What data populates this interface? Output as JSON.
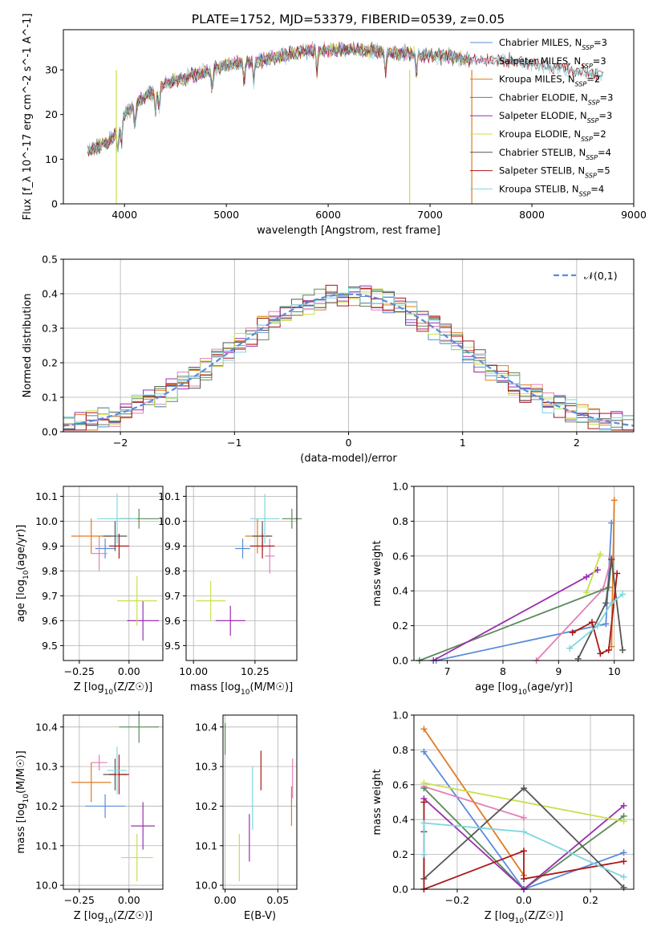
{
  "title": "PLATE=1752, MJD=53379, FIBERID=0539, z=0.05",
  "colors": {
    "Chabrier MILES": "#5b8bd9",
    "Salpeter MILES": "#e37fb8",
    "Kroupa MILES": "#e07b22",
    "Chabrier ELODIE": "#5a8a5a",
    "Salpeter ELODIE": "#9b2fb0",
    "Kroupa ELODIE": "#c8e04a",
    "Chabrier STELIB": "#555555",
    "Salpeter STELIB": "#a81818",
    "Kroupa STELIB": "#7fd6e0",
    "normal": "#5b8bd9",
    "grid": "#b0b0b0"
  },
  "chart_data": [
    {
      "type": "line",
      "xlabel": "wavelength [Angstrom, rest frame]",
      "ylabel": "Flux [f_λ 10^-17 erg cm^-2 s^-1 A^-1]",
      "xlim": [
        3400,
        9000
      ],
      "ylim": [
        0,
        39
      ],
      "xticks": [
        4000,
        5000,
        6000,
        7000,
        8000,
        9000
      ],
      "yticks": [
        0,
        10,
        20,
        30
      ],
      "legend_position": "top-right",
      "series": [
        {
          "name": "Chabrier MILES",
          "n_ssp": "3"
        },
        {
          "name": "Salpeter MILES",
          "n_ssp": "3"
        },
        {
          "name": "Kroupa MILES",
          "n_ssp": "2"
        },
        {
          "name": "Chabrier ELODIE",
          "n_ssp": "3"
        },
        {
          "name": "Salpeter ELODIE",
          "n_ssp": "3"
        },
        {
          "name": "Kroupa ELODIE",
          "n_ssp": "2"
        },
        {
          "name": "Chabrier STELIB",
          "n_ssp": "4"
        },
        {
          "name": "Salpeter STELIB",
          "n_ssp": "5"
        },
        {
          "name": "Kroupa STELIB",
          "n_ssp": "4"
        }
      ],
      "continuum": {
        "x": [
          3640,
          3750,
          3850,
          3950,
          4000,
          4100,
          4200,
          4300,
          4400,
          4500,
          4700,
          5000,
          5300,
          5500,
          5700,
          6000,
          6300,
          6600,
          6900,
          7200,
          7500,
          7800,
          8100,
          8400,
          8700
        ],
        "y": [
          12,
          13,
          14,
          17,
          20,
          22,
          24,
          25,
          27,
          27.5,
          29,
          31,
          32,
          33,
          34,
          34.5,
          34.5,
          34,
          33.5,
          33,
          32,
          32,
          31,
          30,
          29
        ]
      }
    },
    {
      "type": "bar",
      "xlabel": "(data-model)/error",
      "ylabel": "Normed distribution",
      "xlim": [
        -2.5,
        2.5
      ],
      "ylim": [
        0,
        0.5
      ],
      "xticks": [
        -2,
        -1,
        0,
        1,
        2
      ],
      "yticks": [
        0.0,
        0.1,
        0.2,
        0.3,
        0.4,
        0.5
      ],
      "grid": true,
      "legend": "𝒩(0,1)",
      "legend_position": "top-right"
    },
    {
      "type": "scatter",
      "xlabel": "Z [log10(Z/Z☉)]",
      "ylabel": "age  [log10(age/yr)]",
      "xlim": [
        -0.33,
        0.17
      ],
      "ylim": [
        9.44,
        10.14
      ],
      "xticks": [
        -0.25,
        0.0
      ],
      "yticks": [
        9.5,
        9.6,
        9.7,
        9.8,
        9.9,
        10.0,
        10.1
      ],
      "points": [
        {
          "series": "Chabrier MILES",
          "x": -0.12,
          "y": 9.89,
          "xerr": 0.05,
          "yerr": 0.04
        },
        {
          "series": "Salpeter MILES",
          "x": -0.15,
          "y": 9.87,
          "xerr": 0.04,
          "yerr": 0.07
        },
        {
          "series": "Kroupa MILES",
          "x": -0.19,
          "y": 9.94,
          "xerr": 0.1,
          "yerr": 0.07
        },
        {
          "series": "Chabrier ELODIE",
          "x": 0.05,
          "y": 10.01,
          "xerr": 0.1,
          "yerr": 0.04
        },
        {
          "series": "Salpeter ELODIE",
          "x": 0.07,
          "y": 9.6,
          "xerr": 0.08,
          "yerr": 0.08
        },
        {
          "series": "Kroupa ELODIE",
          "x": 0.04,
          "y": 9.68,
          "xerr": 0.1,
          "yerr": 0.1
        },
        {
          "series": "Chabrier STELIB",
          "x": -0.07,
          "y": 9.94,
          "xerr": 0.06,
          "yerr": 0.06
        },
        {
          "series": "Salpeter STELIB",
          "x": -0.05,
          "y": 9.9,
          "xerr": 0.05,
          "yerr": 0.05
        },
        {
          "series": "Kroupa STELIB",
          "x": -0.06,
          "y": 10.01,
          "xerr": 0.1,
          "yerr": 0.1
        }
      ]
    },
    {
      "type": "scatter",
      "xlabel": "mass [log10(M/M☉)]",
      "ylabel": "",
      "xlim": [
        9.97,
        10.42
      ],
      "ylim": [
        9.44,
        10.14
      ],
      "xticks": [
        10.0,
        10.25
      ],
      "yticks": [
        9.5,
        9.6,
        9.7,
        9.8,
        9.9,
        10.0,
        10.1
      ],
      "points": [
        {
          "series": "Chabrier MILES",
          "x": 10.2,
          "y": 9.89,
          "xerr": 0.03,
          "yerr": 0.04
        },
        {
          "series": "Salpeter MILES",
          "x": 10.31,
          "y": 9.86,
          "xerr": 0.02,
          "yerr": 0.07
        },
        {
          "series": "Kroupa MILES",
          "x": 10.26,
          "y": 9.94,
          "xerr": 0.05,
          "yerr": 0.07
        },
        {
          "series": "Chabrier ELODIE",
          "x": 10.4,
          "y": 10.01,
          "xerr": 0.04,
          "yerr": 0.04
        },
        {
          "series": "Salpeter ELODIE",
          "x": 10.15,
          "y": 9.6,
          "xerr": 0.06,
          "yerr": 0.06
        },
        {
          "series": "Kroupa ELODIE",
          "x": 10.07,
          "y": 9.68,
          "xerr": 0.06,
          "yerr": 0.08
        },
        {
          "series": "Chabrier STELIB",
          "x": 10.28,
          "y": 9.94,
          "xerr": 0.04,
          "yerr": 0.06
        },
        {
          "series": "Salpeter STELIB",
          "x": 10.28,
          "y": 9.9,
          "xerr": 0.05,
          "yerr": 0.05
        },
        {
          "series": "Kroupa STELIB",
          "x": 10.29,
          "y": 10.01,
          "xerr": 0.06,
          "yerr": 0.1
        }
      ]
    },
    {
      "type": "line",
      "xlabel": "age  [log10(age/yr)]",
      "ylabel": "mass weight",
      "xlim": [
        6.4,
        10.35
      ],
      "ylim": [
        0,
        1.0
      ],
      "xticks": [
        7,
        8,
        9,
        10
      ],
      "yticks": [
        0.0,
        0.2,
        0.4,
        0.6,
        0.8,
        1.0
      ],
      "grid": true,
      "series": [
        {
          "name": "Chabrier MILES",
          "x": [
            6.8,
            9.85,
            9.95
          ],
          "y": [
            0.0,
            0.21,
            0.79
          ]
        },
        {
          "name": "Salpeter MILES",
          "x": [
            8.6,
            9.8,
            9.95
          ],
          "y": [
            0.0,
            0.41,
            0.59
          ]
        },
        {
          "name": "Kroupa MILES",
          "x": [
            9.95,
            10.0
          ],
          "y": [
            0.08,
            0.92
          ]
        },
        {
          "name": "Chabrier ELODIE",
          "x": [
            6.5,
            9.9,
            9.95
          ],
          "y": [
            0.0,
            0.42,
            0.58
          ]
        },
        {
          "name": "Salpeter ELODIE",
          "x": [
            6.75,
            9.5,
            9.7
          ],
          "y": [
            0.0,
            0.48,
            0.52
          ]
        },
        {
          "name": "Kroupa ELODIE",
          "x": [
            9.5,
            9.75
          ],
          "y": [
            0.39,
            0.61
          ]
        },
        {
          "name": "Chabrier STELIB",
          "x": [
            9.35,
            9.85,
            9.95,
            10.15
          ],
          "y": [
            0.01,
            0.33,
            0.58,
            0.06
          ]
        },
        {
          "name": "Salpeter STELIB",
          "x": [
            9.25,
            9.6,
            9.75,
            9.9,
            10.05
          ],
          "y": [
            0.16,
            0.22,
            0.04,
            0.06,
            0.5
          ]
        },
        {
          "name": "Kroupa STELIB",
          "x": [
            9.2,
            9.7,
            9.95,
            10.15
          ],
          "y": [
            0.07,
            0.2,
            0.33,
            0.38
          ]
        }
      ]
    },
    {
      "type": "scatter",
      "xlabel": "Z [log10(Z/Z☉)]",
      "ylabel": "mass [log10(M/M☉)]",
      "xlim": [
        -0.33,
        0.17
      ],
      "ylim": [
        9.99,
        10.43
      ],
      "xticks": [
        -0.25,
        0.0
      ],
      "yticks": [
        10.0,
        10.1,
        10.2,
        10.3,
        10.4
      ],
      "points": [
        {
          "series": "Chabrier MILES",
          "x": -0.12,
          "y": 10.2,
          "xerr": 0.1,
          "yerr": 0.03
        },
        {
          "series": "Salpeter MILES",
          "x": -0.15,
          "y": 10.31,
          "xerr": 0.04,
          "yerr": 0.02
        },
        {
          "series": "Kroupa MILES",
          "x": -0.19,
          "y": 10.26,
          "xerr": 0.1,
          "yerr": 0.05
        },
        {
          "series": "Chabrier ELODIE",
          "x": 0.05,
          "y": 10.4,
          "xerr": 0.1,
          "yerr": 0.04
        },
        {
          "series": "Salpeter ELODIE",
          "x": 0.07,
          "y": 10.15,
          "xerr": 0.06,
          "yerr": 0.06
        },
        {
          "series": "Kroupa ELODIE",
          "x": 0.04,
          "y": 10.07,
          "xerr": 0.08,
          "yerr": 0.06
        },
        {
          "series": "Chabrier STELIB",
          "x": -0.07,
          "y": 10.28,
          "xerr": 0.06,
          "yerr": 0.04
        },
        {
          "series": "Salpeter STELIB",
          "x": -0.05,
          "y": 10.28,
          "xerr": 0.05,
          "yerr": 0.05
        },
        {
          "series": "Kroupa STELIB",
          "x": -0.06,
          "y": 10.29,
          "xerr": 0.05,
          "yerr": 0.06
        }
      ]
    },
    {
      "type": "scatter",
      "xlabel": "E(B-V)",
      "ylabel": "",
      "xlim": [
        -0.002,
        0.068
      ],
      "ylim": [
        9.99,
        10.43
      ],
      "xticks": [
        0.0,
        0.05
      ],
      "yticks": [
        10.0,
        10.1,
        10.2,
        10.3,
        10.4
      ],
      "points": [
        {
          "series": "Chabrier ELODIE",
          "x": 0.0,
          "y": 10.37,
          "yerr": 0.04
        },
        {
          "series": "Kroupa ELODIE",
          "x": 0.0135,
          "y": 10.07,
          "yerr": 0.06
        },
        {
          "series": "Salpeter ELODIE",
          "x": 0.023,
          "y": 10.12,
          "yerr": 0.06
        },
        {
          "series": "Kroupa STELIB",
          "x": 0.026,
          "y": 10.22,
          "yerr": 0.08
        },
        {
          "series": "Salpeter STELIB",
          "x": 0.034,
          "y": 10.29,
          "yerr": 0.05
        },
        {
          "series": "Kroupa MILES",
          "x": 0.063,
          "y": 10.2,
          "yerr": 0.05
        },
        {
          "series": "Salpeter MILES",
          "x": 0.064,
          "y": 10.27,
          "yerr": 0.05
        }
      ]
    },
    {
      "type": "line",
      "xlabel": "Z [log10(Z/Z☉)]",
      "ylabel": "mass weight",
      "xlim": [
        -0.33,
        0.33
      ],
      "ylim": [
        0,
        1.0
      ],
      "xticks": [
        -0.2,
        0.0,
        0.2
      ],
      "yticks": [
        0.0,
        0.2,
        0.4,
        0.6,
        0.8,
        1.0
      ],
      "grid": true,
      "series": [
        {
          "name": "Chabrier MILES",
          "x": [
            -0.3,
            0.0,
            0.3
          ],
          "y": [
            0.79,
            0.0,
            0.21
          ]
        },
        {
          "name": "Salpeter MILES",
          "x": [
            -0.3,
            0.0
          ],
          "y": [
            0.59,
            0.41
          ]
        },
        {
          "name": "Kroupa MILES",
          "x": [
            -0.3,
            0.0
          ],
          "y": [
            0.92,
            0.08
          ]
        },
        {
          "name": "Chabrier ELODIE",
          "x": [
            -0.3,
            0.0,
            0.3
          ],
          "y": [
            0.58,
            0.0,
            0.42
          ]
        },
        {
          "name": "Salpeter ELODIE",
          "x": [
            -0.3,
            0.0,
            0.3
          ],
          "y": [
            0.52,
            0.0,
            0.48
          ]
        },
        {
          "name": "Kroupa ELODIE",
          "x": [
            -0.3,
            0.3
          ],
          "y": [
            0.61,
            0.39
          ]
        },
        {
          "name": "Chabrier STELIB",
          "x": [
            -0.3,
            -0.3,
            0.0,
            0.3
          ],
          "y": [
            0.33,
            0.06,
            0.58,
            0.01
          ]
        },
        {
          "name": "Salpeter STELIB",
          "x": [
            -0.3,
            -0.3,
            0.0,
            0.0,
            0.3
          ],
          "y": [
            0.5,
            0.0,
            0.22,
            0.06,
            0.16
          ]
        },
        {
          "name": "Kroupa STELIB",
          "x": [
            -0.3,
            -0.3,
            0.0,
            0.3
          ],
          "y": [
            0.2,
            0.38,
            0.33,
            0.07
          ]
        }
      ]
    }
  ]
}
